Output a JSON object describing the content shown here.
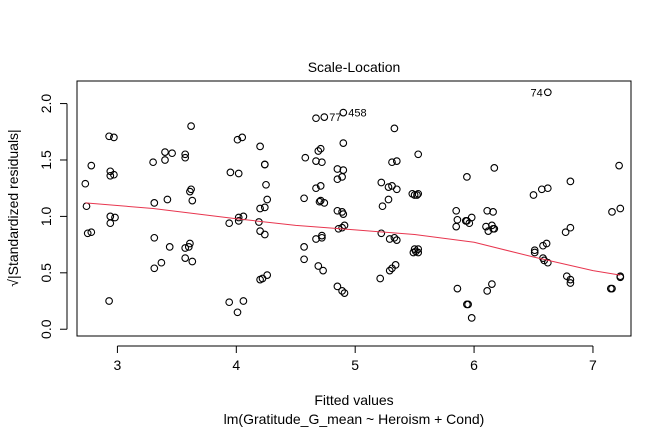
{
  "chart_data": {
    "type": "scatter",
    "title": "Scale-Location",
    "xlabel": "Fitted values",
    "subtitle": "lm(Gratitude_G_mean ~ Heroism + Cond)",
    "ylabel_prefix": "√",
    "ylabel": "|Standardized residuals|",
    "xlim": [
      2.66,
      7.32
    ],
    "ylim": [
      -0.06,
      2.2
    ],
    "xticks": [
      3,
      4,
      5,
      6,
      7
    ],
    "yticks": [
      0.0,
      0.5,
      1.0,
      1.5,
      2.0
    ],
    "xtick_labels": [
      "3",
      "4",
      "5",
      "6",
      "7"
    ],
    "ytick_labels": [
      "0.0",
      "0.5",
      "1.0",
      "1.5",
      "2.0"
    ],
    "points": [
      [
        2.73,
        1.29
      ],
      [
        2.74,
        1.09
      ],
      [
        2.75,
        0.85
      ],
      [
        2.78,
        0.86
      ],
      [
        2.78,
        1.45
      ],
      [
        2.93,
        0.25
      ],
      [
        2.93,
        1.71
      ],
      [
        2.94,
        1.4
      ],
      [
        2.94,
        1.36
      ],
      [
        2.94,
        1.0
      ],
      [
        2.94,
        0.94
      ],
      [
        2.97,
        1.7
      ],
      [
        2.97,
        1.37
      ],
      [
        2.98,
        0.99
      ],
      [
        3.3,
        1.48
      ],
      [
        3.31,
        1.12
      ],
      [
        3.31,
        0.81
      ],
      [
        3.31,
        0.54
      ],
      [
        3.37,
        0.59
      ],
      [
        3.4,
        1.57
      ],
      [
        3.4,
        1.5
      ],
      [
        3.42,
        1.15
      ],
      [
        3.44,
        0.73
      ],
      [
        3.46,
        1.56
      ],
      [
        3.57,
        1.55
      ],
      [
        3.57,
        1.52
      ],
      [
        3.57,
        0.63
      ],
      [
        3.57,
        0.72
      ],
      [
        3.6,
        0.73
      ],
      [
        3.61,
        0.76
      ],
      [
        3.61,
        1.22
      ],
      [
        3.62,
        1.8
      ],
      [
        3.62,
        1.24
      ],
      [
        3.63,
        1.14
      ],
      [
        3.63,
        0.6
      ],
      [
        3.94,
        0.24
      ],
      [
        3.94,
        0.94
      ],
      [
        3.95,
        1.39
      ],
      [
        4.01,
        0.15
      ],
      [
        4.01,
        1.68
      ],
      [
        4.02,
        1.38
      ],
      [
        4.02,
        0.99
      ],
      [
        4.02,
        0.96
      ],
      [
        4.05,
        1.7
      ],
      [
        4.06,
        1.0
      ],
      [
        4.06,
        0.25
      ],
      [
        4.19,
        0.95
      ],
      [
        4.2,
        1.62
      ],
      [
        4.2,
        1.07
      ],
      [
        4.2,
        0.87
      ],
      [
        4.2,
        0.44
      ],
      [
        4.22,
        0.45
      ],
      [
        4.24,
        1.46
      ],
      [
        4.24,
        1.46
      ],
      [
        4.24,
        0.84
      ],
      [
        4.24,
        1.08
      ],
      [
        4.25,
        1.28
      ],
      [
        4.26,
        0.48
      ],
      [
        4.26,
        1.15
      ],
      [
        4.57,
        0.73
      ],
      [
        4.57,
        0.62
      ],
      [
        4.57,
        1.16
      ],
      [
        4.58,
        1.52
      ],
      [
        4.67,
        0.8
      ],
      [
        4.67,
        1.87
      ],
      [
        4.67,
        1.49
      ],
      [
        4.67,
        1.25
      ],
      [
        4.69,
        0.56
      ],
      [
        4.69,
        1.58
      ],
      [
        4.7,
        1.13
      ],
      [
        4.71,
        1.14
      ],
      [
        4.71,
        1.27
      ],
      [
        4.71,
        1.6
      ],
      [
        4.72,
        0.81
      ],
      [
        4.72,
        0.83
      ],
      [
        4.72,
        1.48
      ],
      [
        4.73,
        0.52
      ],
      [
        4.74,
        1.88
      ],
      [
        4.74,
        1.12
      ],
      [
        4.85,
        0.38
      ],
      [
        4.85,
        1.05
      ],
      [
        4.85,
        1.33
      ],
      [
        4.85,
        1.42
      ],
      [
        4.86,
        0.89
      ],
      [
        4.89,
        1.35
      ],
      [
        4.89,
        1.04
      ],
      [
        4.89,
        0.9
      ],
      [
        4.89,
        0.34
      ],
      [
        4.9,
        1.92
      ],
      [
        4.9,
        1.65
      ],
      [
        4.9,
        1.41
      ],
      [
        4.9,
        1.02
      ],
      [
        4.91,
        0.32
      ],
      [
        4.91,
        0.92
      ],
      [
        5.21,
        0.45
      ],
      [
        5.22,
        0.85
      ],
      [
        5.22,
        1.3
      ],
      [
        5.23,
        1.09
      ],
      [
        5.28,
        1.15
      ],
      [
        5.28,
        1.26
      ],
      [
        5.29,
        0.8
      ],
      [
        5.29,
        0.52
      ],
      [
        5.31,
        1.48
      ],
      [
        5.31,
        1.27
      ],
      [
        5.31,
        0.54
      ],
      [
        5.33,
        1.78
      ],
      [
        5.33,
        0.81
      ],
      [
        5.34,
        0.57
      ],
      [
        5.35,
        1.49
      ],
      [
        5.35,
        1.24
      ],
      [
        5.35,
        0.79
      ],
      [
        5.48,
        1.2
      ],
      [
        5.49,
        0.68
      ],
      [
        5.5,
        1.19
      ],
      [
        5.5,
        0.71
      ],
      [
        5.51,
        0.69
      ],
      [
        5.52,
        1.19
      ],
      [
        5.53,
        1.2
      ],
      [
        5.53,
        1.55
      ],
      [
        5.53,
        0.68
      ],
      [
        5.53,
        0.71
      ],
      [
        5.85,
        0.91
      ],
      [
        5.85,
        1.05
      ],
      [
        5.86,
        0.36
      ],
      [
        5.86,
        0.97
      ],
      [
        5.93,
        0.96
      ],
      [
        5.94,
        0.22
      ],
      [
        5.94,
        1.35
      ],
      [
        5.94,
        0.96
      ],
      [
        5.95,
        0.22
      ],
      [
        5.96,
        0.94
      ],
      [
        5.98,
        0.1
      ],
      [
        5.98,
        0.99
      ],
      [
        6.1,
        0.91
      ],
      [
        6.11,
        0.34
      ],
      [
        6.11,
        1.05
      ],
      [
        6.12,
        0.87
      ],
      [
        6.15,
        0.4
      ],
      [
        6.15,
        0.92
      ],
      [
        6.16,
        1.04
      ],
      [
        6.16,
        0.89
      ],
      [
        6.17,
        0.89
      ],
      [
        6.17,
        1.43
      ],
      [
        6.5,
        1.19
      ],
      [
        6.51,
        0.68
      ],
      [
        6.51,
        0.7
      ],
      [
        6.57,
        1.24
      ],
      [
        6.58,
        0.74
      ],
      [
        6.58,
        0.63
      ],
      [
        6.59,
        0.61
      ],
      [
        6.61,
        0.76
      ],
      [
        6.62,
        2.1
      ],
      [
        6.62,
        0.59
      ],
      [
        6.62,
        1.25
      ],
      [
        6.77,
        0.86
      ],
      [
        6.78,
        0.47
      ],
      [
        6.81,
        1.31
      ],
      [
        6.81,
        0.9
      ],
      [
        6.81,
        0.41
      ],
      [
        6.81,
        0.44
      ],
      [
        7.15,
        0.36
      ],
      [
        7.16,
        1.04
      ],
      [
        7.16,
        0.36
      ],
      [
        7.22,
        1.45
      ],
      [
        7.23,
        0.46
      ],
      [
        7.23,
        1.07
      ],
      [
        7.23,
        0.47
      ]
    ],
    "smoother": [
      [
        2.73,
        1.12
      ],
      [
        3.3,
        1.07
      ],
      [
        4.0,
        0.98
      ],
      [
        4.5,
        0.92
      ],
      [
        5.0,
        0.88
      ],
      [
        5.5,
        0.84
      ],
      [
        6.0,
        0.77
      ],
      [
        6.5,
        0.64
      ],
      [
        7.0,
        0.52
      ],
      [
        7.23,
        0.48
      ]
    ],
    "annotations": [
      {
        "text": "74",
        "x": 6.62,
        "y": 2.1,
        "side": "left"
      },
      {
        "text": "77",
        "x": 4.74,
        "y": 1.88,
        "side": "right"
      },
      {
        "text": "458",
        "x": 4.9,
        "y": 1.92,
        "side": "right"
      }
    ],
    "colors": {
      "points": "#000000",
      "smoother": "#e8364f",
      "axes": "#000000"
    }
  }
}
